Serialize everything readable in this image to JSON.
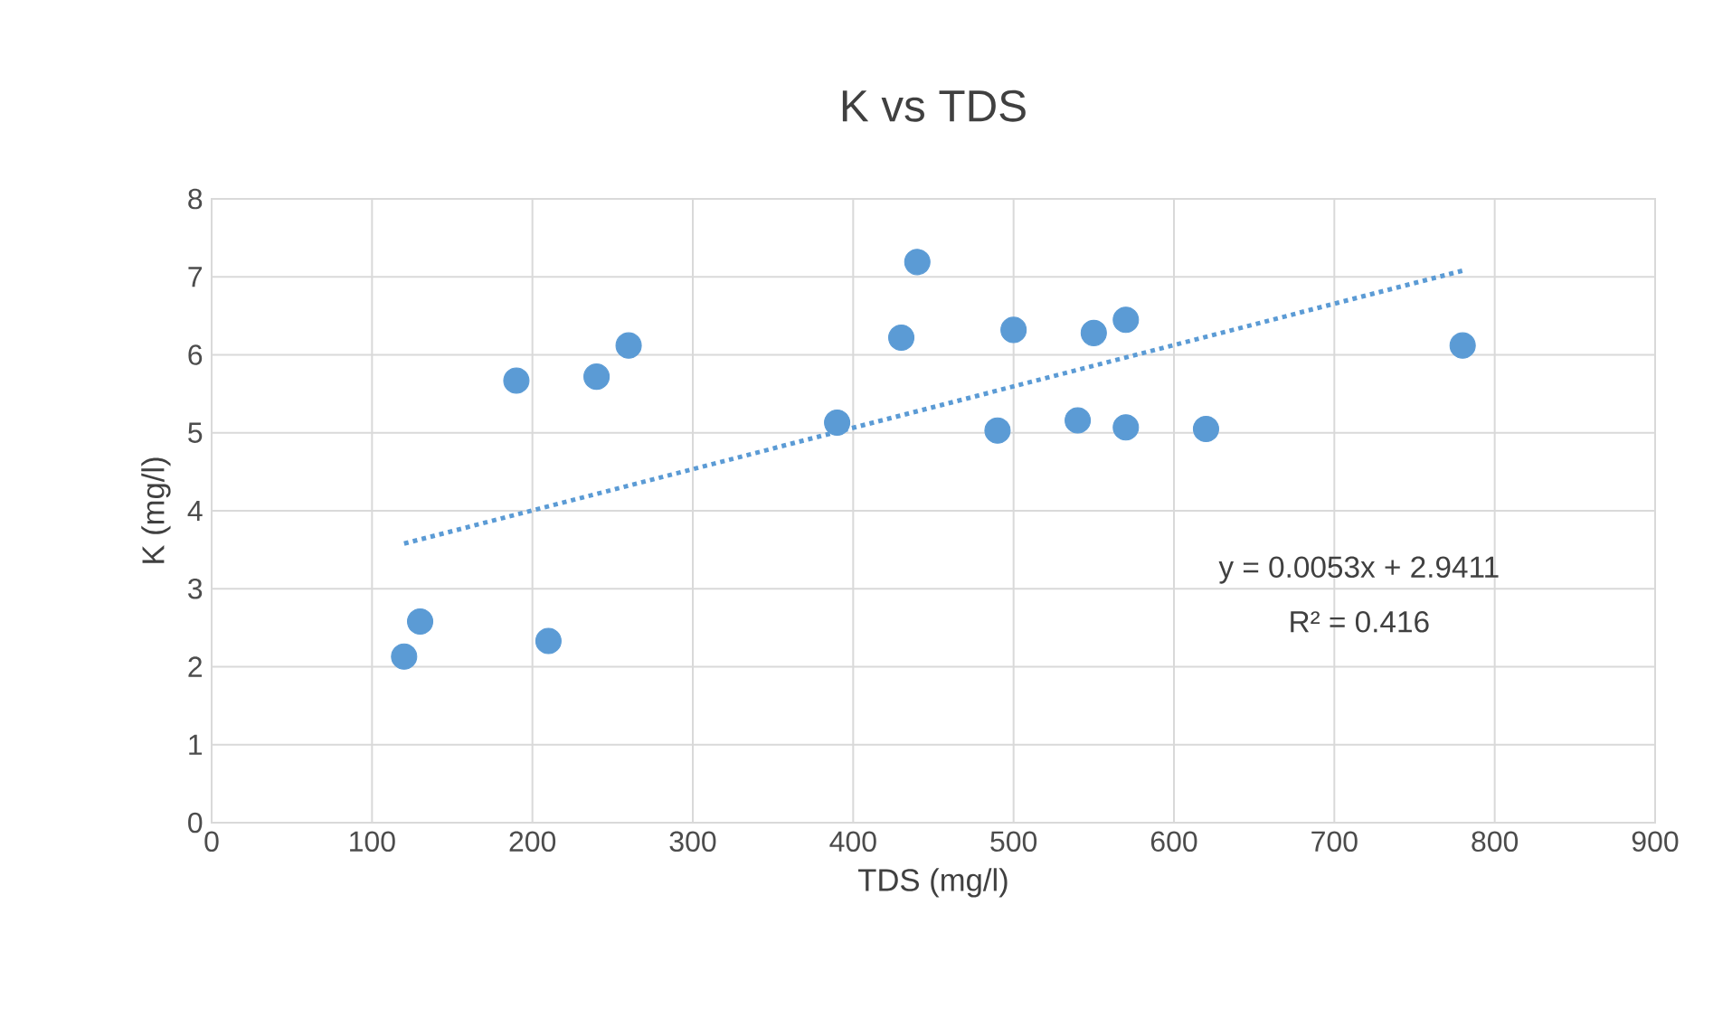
{
  "chart_data": {
    "type": "scatter",
    "title": "K vs TDS",
    "xlabel": "TDS (mg/l)",
    "ylabel": "K (mg/l)",
    "series": [
      {
        "color": "#5b9bd5",
        "marker": "circle",
        "x": [
          120,
          130,
          190,
          210,
          240,
          260,
          390,
          430,
          440,
          490,
          500,
          540,
          550,
          570,
          570,
          620,
          780
        ],
        "values": [
          2.13,
          2.58,
          5.67,
          2.33,
          5.72,
          6.12,
          5.13,
          6.22,
          7.19,
          5.03,
          6.32,
          5.16,
          6.28,
          6.45,
          5.07,
          5.05,
          6.12
        ]
      },
      {
        "type": "line",
        "color": "#5b9bd5",
        "line_style": "dotted",
        "marker": "none",
        "x": [
          120,
          780
        ],
        "values": [
          3.58,
          7.08
        ]
      }
    ],
    "annotations": [
      "y = 0.0053x + 2.9411",
      "R² = 0.416"
    ],
    "xlim": [
      0,
      900
    ],
    "xticks": [
      0,
      100,
      200,
      300,
      400,
      500,
      600,
      700,
      800,
      900
    ],
    "ylim": [
      0,
      8
    ],
    "yticks": [
      0,
      1,
      2,
      3,
      4,
      5,
      6,
      7,
      8
    ],
    "grid": true
  }
}
